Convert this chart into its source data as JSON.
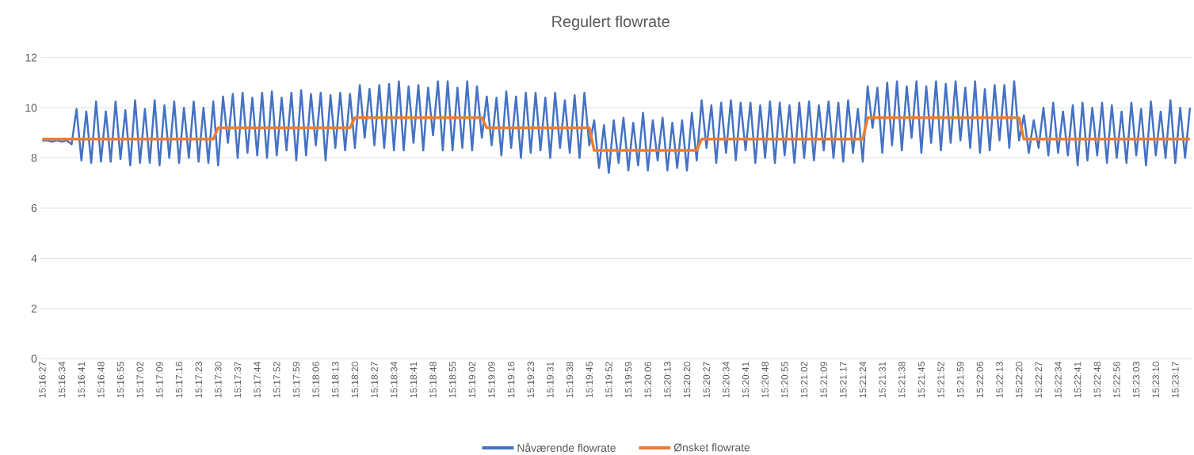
{
  "chart_data": {
    "type": "line",
    "title": "Regulert flowrate",
    "categories": [
      "15:16:27",
      null,
      null,
      null,
      "15:16:34",
      null,
      null,
      null,
      "15:16:41",
      null,
      null,
      null,
      "15:16:48",
      null,
      null,
      null,
      "15:16:55",
      null,
      null,
      null,
      "15:17:02",
      null,
      null,
      null,
      "15:17:09",
      null,
      null,
      null,
      "15:17:16",
      null,
      null,
      null,
      "15:17:23",
      null,
      null,
      null,
      "15:17:30",
      null,
      null,
      null,
      "15:17:37",
      null,
      null,
      null,
      "15:17:44",
      null,
      null,
      null,
      "15:17:52",
      null,
      null,
      null,
      "15:17:59",
      null,
      null,
      null,
      "15:18:06",
      null,
      null,
      null,
      "15:18:13",
      null,
      null,
      null,
      "15:18:20",
      null,
      null,
      null,
      "15:18:27",
      null,
      null,
      null,
      "15:18:34",
      null,
      null,
      null,
      "15:18:41",
      null,
      null,
      null,
      "15:18:48",
      null,
      null,
      null,
      "15:18:55",
      null,
      null,
      null,
      "15:19:02",
      null,
      null,
      null,
      "15:19:09",
      null,
      null,
      null,
      "15:19:16",
      null,
      null,
      null,
      "15:19:23",
      null,
      null,
      null,
      "15:19:31",
      null,
      null,
      null,
      "15:19:38",
      null,
      null,
      null,
      "15:19:45",
      null,
      null,
      null,
      "15:19:52",
      null,
      null,
      null,
      "15:19:59",
      null,
      null,
      null,
      "15:20:06",
      null,
      null,
      null,
      "15:20:13",
      null,
      null,
      null,
      "15:20:20",
      null,
      null,
      null,
      "15:20:27",
      null,
      null,
      null,
      "15:20:34",
      null,
      null,
      null,
      "15:20:41",
      null,
      null,
      null,
      "15:20:48",
      null,
      null,
      null,
      "15:20:55",
      null,
      null,
      null,
      "15:21:02",
      null,
      null,
      null,
      "15:21:09",
      null,
      null,
      null,
      "15:21:17",
      null,
      null,
      null,
      "15:21:24",
      null,
      null,
      null,
      "15:21:31",
      null,
      null,
      null,
      "15:21:38",
      null,
      null,
      null,
      "15:21:45",
      null,
      null,
      null,
      "15:21:52",
      null,
      null,
      null,
      "15:21:59",
      null,
      null,
      null,
      "15:22:06",
      null,
      null,
      null,
      "15:22:13",
      null,
      null,
      null,
      "15:22:20",
      null,
      null,
      null,
      "15:22:27",
      null,
      null,
      null,
      "15:22:34",
      null,
      null,
      null,
      "15:22:41",
      null,
      null,
      null,
      "15:22:48",
      null,
      null,
      null,
      "15:22:56",
      null,
      null,
      null,
      "15:23:03",
      null,
      null,
      null,
      "15:23:10",
      null,
      null,
      null,
      "15:23:17",
      null,
      null,
      null
    ],
    "series": [
      {
        "name": "Nåværende flowrate",
        "color": "#4472c4",
        "values": [
          8.7,
          8.7,
          8.65,
          8.7,
          8.65,
          8.7,
          8.55,
          9.95,
          7.9,
          9.85,
          7.8,
          10.25,
          7.85,
          9.85,
          7.85,
          10.25,
          7.95,
          9.9,
          7.7,
          10.3,
          7.8,
          9.95,
          7.8,
          10.3,
          7.7,
          10.1,
          8.0,
          10.25,
          7.8,
          10.0,
          8.0,
          10.25,
          7.85,
          10.0,
          7.8,
          10.25,
          7.7,
          10.45,
          8.6,
          10.55,
          8.0,
          10.6,
          8.2,
          10.4,
          8.1,
          10.6,
          8.0,
          10.65,
          8.1,
          10.4,
          8.3,
          10.6,
          7.9,
          10.7,
          8.1,
          10.55,
          8.5,
          10.6,
          7.9,
          10.5,
          8.4,
          10.6,
          8.3,
          10.55,
          8.4,
          10.9,
          8.8,
          10.75,
          8.5,
          10.9,
          8.4,
          10.95,
          8.3,
          11.05,
          8.3,
          10.85,
          8.6,
          10.9,
          8.3,
          10.8,
          8.9,
          11.05,
          8.3,
          11.05,
          8.3,
          10.8,
          8.4,
          11.05,
          8.3,
          10.85,
          8.8,
          10.45,
          8.5,
          10.4,
          8.1,
          10.65,
          8.4,
          10.45,
          8.0,
          10.6,
          8.2,
          10.6,
          8.3,
          10.4,
          8.0,
          10.6,
          8.4,
          10.3,
          8.2,
          10.5,
          8.0,
          10.6,
          8.5,
          9.5,
          7.6,
          9.3,
          7.4,
          9.5,
          7.8,
          9.6,
          7.5,
          9.4,
          7.7,
          9.8,
          7.5,
          9.5,
          7.9,
          9.6,
          7.5,
          9.4,
          7.6,
          9.5,
          7.5,
          9.8,
          7.9,
          10.3,
          8.4,
          10.1,
          7.8,
          10.2,
          8.2,
          10.3,
          7.9,
          10.2,
          8.3,
          10.2,
          7.8,
          10.1,
          8.0,
          10.25,
          7.8,
          10.2,
          8.1,
          10.1,
          7.8,
          10.2,
          8.0,
          10.25,
          7.9,
          10.1,
          8.3,
          10.25,
          8.0,
          10.2,
          7.85,
          10.3,
          8.2,
          9.95,
          7.85,
          10.85,
          9.2,
          10.8,
          8.2,
          11.0,
          8.5,
          11.05,
          8.3,
          10.85,
          8.8,
          11.05,
          8.2,
          10.85,
          8.6,
          11.05,
          8.3,
          10.95,
          8.6,
          11.05,
          8.7,
          10.8,
          8.4,
          11.05,
          8.2,
          10.75,
          8.3,
          10.9,
          8.7,
          10.9,
          8.4,
          11.05,
          8.7,
          9.7,
          8.2,
          9.5,
          8.4,
          10.0,
          8.1,
          10.2,
          8.2,
          9.85,
          8.1,
          10.1,
          7.7,
          10.2,
          7.9,
          10.0,
          8.1,
          10.2,
          7.8,
          10.1,
          8.0,
          9.85,
          7.8,
          10.2,
          8.1,
          9.95,
          7.7,
          10.25,
          8.1,
          9.85,
          8.0,
          10.3,
          7.8,
          10.0,
          8.0,
          10.0
        ]
      },
      {
        "name": "Ønsket flowrate",
        "color": "#ed7d31",
        "values": [
          8.75,
          8.75,
          8.75,
          8.75,
          8.75,
          8.75,
          8.75,
          8.75,
          8.75,
          8.75,
          8.75,
          8.75,
          8.75,
          8.75,
          8.75,
          8.75,
          8.75,
          8.75,
          8.75,
          8.75,
          8.75,
          8.75,
          8.75,
          8.75,
          8.75,
          8.75,
          8.75,
          8.75,
          8.75,
          8.75,
          8.75,
          8.75,
          8.75,
          8.75,
          8.75,
          8.75,
          9.2,
          9.2,
          9.2,
          9.2,
          9.2,
          9.2,
          9.2,
          9.2,
          9.2,
          9.2,
          9.2,
          9.2,
          9.2,
          9.2,
          9.2,
          9.2,
          9.2,
          9.2,
          9.2,
          9.2,
          9.2,
          9.2,
          9.2,
          9.2,
          9.2,
          9.2,
          9.2,
          9.2,
          9.6,
          9.6,
          9.6,
          9.6,
          9.6,
          9.6,
          9.6,
          9.6,
          9.6,
          9.6,
          9.6,
          9.6,
          9.6,
          9.6,
          9.6,
          9.6,
          9.6,
          9.6,
          9.6,
          9.6,
          9.6,
          9.6,
          9.6,
          9.6,
          9.6,
          9.6,
          9.6,
          9.2,
          9.2,
          9.2,
          9.2,
          9.2,
          9.2,
          9.2,
          9.2,
          9.2,
          9.2,
          9.2,
          9.2,
          9.2,
          9.2,
          9.2,
          9.2,
          9.2,
          9.2,
          9.2,
          9.2,
          9.2,
          9.2,
          8.3,
          8.3,
          8.3,
          8.3,
          8.3,
          8.3,
          8.3,
          8.3,
          8.3,
          8.3,
          8.3,
          8.3,
          8.3,
          8.3,
          8.3,
          8.3,
          8.3,
          8.3,
          8.3,
          8.3,
          8.3,
          8.3,
          8.75,
          8.75,
          8.75,
          8.75,
          8.75,
          8.75,
          8.75,
          8.75,
          8.75,
          8.75,
          8.75,
          8.75,
          8.75,
          8.75,
          8.75,
          8.75,
          8.75,
          8.75,
          8.75,
          8.75,
          8.75,
          8.75,
          8.75,
          8.75,
          8.75,
          8.75,
          8.75,
          8.75,
          8.75,
          8.75,
          8.75,
          8.75,
          8.75,
          8.75,
          9.6,
          9.6,
          9.6,
          9.6,
          9.6,
          9.6,
          9.6,
          9.6,
          9.6,
          9.6,
          9.6,
          9.6,
          9.6,
          9.6,
          9.6,
          9.6,
          9.6,
          9.6,
          9.6,
          9.6,
          9.6,
          9.6,
          9.6,
          9.6,
          9.6,
          9.6,
          9.6,
          9.6,
          9.6,
          9.6,
          9.6,
          9.6,
          8.75,
          8.75,
          8.75,
          8.75,
          8.75,
          8.75,
          8.75,
          8.75,
          8.75,
          8.75,
          8.75,
          8.75,
          8.75,
          8.75,
          8.75,
          8.75,
          8.75,
          8.75,
          8.75,
          8.75,
          8.75,
          8.75,
          8.75,
          8.75,
          8.75,
          8.75,
          8.75,
          8.75,
          8.75,
          8.75,
          8.75,
          8.75,
          8.75,
          8.75,
          8.75
        ]
      }
    ],
    "ylim": [
      0,
      12
    ],
    "yticks": [
      0,
      2,
      4,
      6,
      8,
      10,
      12
    ],
    "grid": "y",
    "legend": "bottom",
    "marker": "none",
    "line_style": "solid"
  }
}
